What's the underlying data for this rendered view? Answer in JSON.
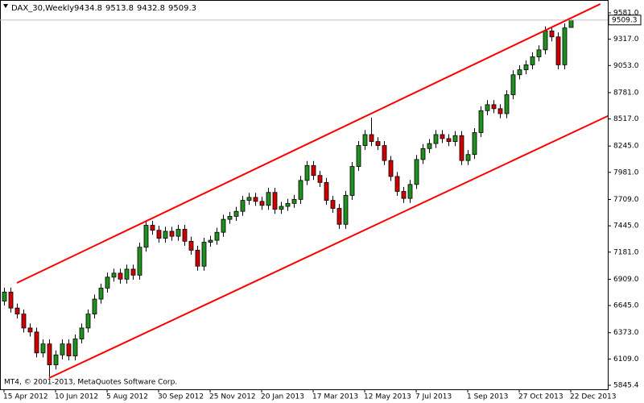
{
  "chart_data": {
    "type": "candlestick",
    "title": "DAX_30,Weekly",
    "footer": "MT4, © 2001-2013, MetaQuotes Software Corp.",
    "categories": [
      "15 Apr 2012",
      null,
      null,
      null,
      null,
      null,
      null,
      null,
      "10 Jun 2012",
      null,
      null,
      null,
      null,
      null,
      null,
      null,
      "5 Aug 2012",
      null,
      null,
      null,
      null,
      null,
      null,
      null,
      "30 Sep 2012",
      null,
      null,
      null,
      null,
      null,
      null,
      null,
      "25 Nov 2012",
      null,
      null,
      null,
      null,
      null,
      null,
      null,
      "20 Jan 2013",
      null,
      null,
      null,
      null,
      null,
      null,
      null,
      "17 Mar 2013",
      null,
      null,
      null,
      null,
      null,
      null,
      null,
      "12 May 2013",
      null,
      null,
      null,
      null,
      null,
      null,
      null,
      "7 Jul 2013",
      null,
      null,
      null,
      null,
      null,
      null,
      null,
      "1 Sep 2013",
      null,
      null,
      null,
      null,
      null,
      null,
      null,
      "27 Oct 2013",
      null,
      null,
      null,
      null,
      null,
      null,
      null,
      "22 Dec 2013"
    ],
    "series": [
      {
        "up_color": "#1f8f1f",
        "down_color": "#d00000",
        "open": [
          6690,
          6780,
          6620,
          6560,
          6420,
          6380,
          6170,
          6260,
          6050,
          6150,
          6260,
          6140,
          6310,
          6420,
          6560,
          6710,
          6820,
          6930,
          6970,
          6910,
          7010,
          6950,
          7230,
          7450,
          7400,
          7320,
          7390,
          7340,
          7410,
          7290,
          7200,
          7040,
          7280,
          7300,
          7380,
          7510,
          7540,
          7590,
          7700,
          7730,
          7690,
          7650,
          7780,
          7610,
          7640,
          7670,
          7710,
          7900,
          8050,
          7950,
          7880,
          7700,
          7620,
          7460,
          7750,
          8040,
          8250,
          8360,
          8290,
          8250,
          8100,
          7940,
          7790,
          7720,
          7860,
          8110,
          8220,
          8270,
          8360,
          8320,
          8290,
          8350,
          8100,
          8160,
          8380,
          8600,
          8660,
          8620,
          8570,
          8760,
          8960,
          9010,
          9060,
          9140,
          9210,
          9400,
          9340,
          9060,
          9434.8
        ],
        "high": [
          6825,
          6825,
          6665,
          6605,
          6465,
          6425,
          6305,
          6305,
          6195,
          6305,
          6305,
          6355,
          6465,
          6605,
          6755,
          6865,
          6975,
          7015,
          7015,
          7055,
          7055,
          7275,
          7495,
          7495,
          7445,
          7435,
          7435,
          7455,
          7455,
          7335,
          7245,
          7325,
          7345,
          7425,
          7555,
          7585,
          7635,
          7745,
          7775,
          7775,
          7735,
          7825,
          7825,
          7685,
          7715,
          7755,
          7945,
          8095,
          8095,
          7995,
          7925,
          7745,
          7665,
          7795,
          8085,
          8295,
          8405,
          8530,
          8335,
          8295,
          8145,
          7985,
          7835,
          7905,
          8155,
          8265,
          8315,
          8405,
          8405,
          8365,
          8395,
          8395,
          8205,
          8425,
          8645,
          8705,
          8705,
          8665,
          8805,
          9005,
          9055,
          9105,
          9185,
          9255,
          9445,
          9445,
          9385,
          9475,
          9513.8
        ],
        "low": [
          6645,
          6575,
          6515,
          6375,
          6335,
          6125,
          6125,
          5930,
          6005,
          6105,
          6095,
          6095,
          6265,
          6375,
          6515,
          6665,
          6775,
          6885,
          6865,
          6865,
          6905,
          6905,
          7185,
          7355,
          7275,
          7275,
          7295,
          7295,
          7245,
          7155,
          6995,
          6995,
          7235,
          7255,
          7335,
          7465,
          7495,
          7545,
          7655,
          7645,
          7605,
          7605,
          7565,
          7565,
          7595,
          7625,
          7665,
          7855,
          7905,
          7835,
          7655,
          7575,
          7415,
          7415,
          7705,
          7995,
          8205,
          8245,
          8205,
          8055,
          7895,
          7745,
          7675,
          7675,
          7815,
          8065,
          8175,
          8225,
          8275,
          8245,
          8245,
          8055,
          8055,
          8115,
          8335,
          8555,
          8575,
          8525,
          8525,
          8715,
          8915,
          8965,
          9015,
          9095,
          9165,
          9295,
          9015,
          9015,
          9432.8
        ],
        "close": [
          6780,
          6620,
          6560,
          6420,
          6380,
          6170,
          6260,
          6050,
          6150,
          6260,
          6140,
          6310,
          6420,
          6560,
          6710,
          6820,
          6930,
          6970,
          6910,
          7010,
          6950,
          7230,
          7450,
          7400,
          7320,
          7390,
          7340,
          7410,
          7290,
          7200,
          7040,
          7280,
          7300,
          7380,
          7510,
          7540,
          7590,
          7700,
          7730,
          7690,
          7650,
          7780,
          7610,
          7640,
          7670,
          7710,
          7900,
          8050,
          7950,
          7880,
          7700,
          7620,
          7460,
          7750,
          8040,
          8250,
          8360,
          8290,
          8250,
          8100,
          7940,
          7790,
          7720,
          7860,
          8110,
          8220,
          8270,
          8360,
          8320,
          8290,
          8350,
          8100,
          8160,
          8380,
          8600,
          8660,
          8620,
          8570,
          8760,
          8960,
          9010,
          9060,
          9140,
          9210,
          9400,
          9340,
          9060,
          9430,
          9509.3
        ]
      }
    ],
    "channel_lines": [
      {
        "color": "#ff0000",
        "points": [
          [
            2,
            6872
          ],
          [
            92.6,
            9670
          ]
        ]
      },
      {
        "color": "#ff0000",
        "points": [
          [
            7,
            5918
          ],
          [
            98,
            8675
          ]
        ]
      }
    ],
    "ylim": [
      5805,
      9710
    ],
    "yticks": [
      {
        "value": 9581,
        "label": "9581.0"
      },
      {
        "value": 9317,
        "label": "9317.0"
      },
      {
        "value": 9053,
        "label": "9053.0"
      },
      {
        "value": 8781,
        "label": "8781.0"
      },
      {
        "value": 8517,
        "label": "8517.0"
      },
      {
        "value": 8245,
        "label": "8245.0"
      },
      {
        "value": 7981,
        "label": "7981.0"
      },
      {
        "value": 7709,
        "label": "7709.0"
      },
      {
        "value": 7445,
        "label": "7445.0"
      },
      {
        "value": 7181,
        "label": "7181.0"
      },
      {
        "value": 6909,
        "label": "6909.0"
      },
      {
        "value": 6645,
        "label": "6645.0"
      },
      {
        "value": 6373,
        "label": "6373.0"
      },
      {
        "value": 6109,
        "label": "6109.0"
      },
      5845.4
    ],
    "grid": false
  }
}
